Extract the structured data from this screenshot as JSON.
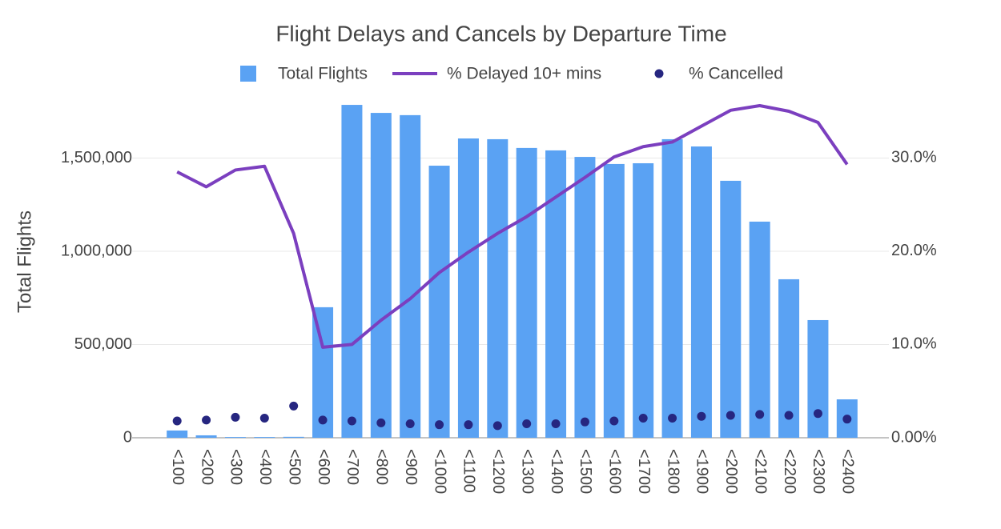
{
  "chart_data": {
    "type": "bar",
    "title": "Flight Delays and Cancels by Departure Time",
    "ylabel": "Total Flights",
    "categories": [
      "<100",
      "<200",
      "<300",
      "<400",
      "<500",
      "<600",
      "<700",
      "<800",
      "<900",
      "<1000",
      "<1100",
      "<1200",
      "<1300",
      "<1400",
      "<1500",
      "<1600",
      "<1700",
      "<1800",
      "<1900",
      "<2000",
      "<2100",
      "<2200",
      "<2300",
      "<2400"
    ],
    "series": [
      {
        "name": "Total Flights",
        "type": "bar",
        "color": "#5aa2f3",
        "values": [
          39000,
          13000,
          4000,
          4000,
          5000,
          700000,
          1785000,
          1742000,
          1730000,
          1459000,
          1605000,
          1601000,
          1554000,
          1541000,
          1506000,
          1468000,
          1472000,
          1601000,
          1562000,
          1378000,
          1159000,
          850000,
          631000,
          206000
        ]
      },
      {
        "name": "% Delayed 10+ mins",
        "type": "line",
        "axis": "y2",
        "color": "#7b3fbf",
        "values": [
          28.5,
          26.9,
          28.7,
          29.1,
          21.9,
          9.7,
          10.0,
          12.6,
          14.9,
          17.7,
          19.9,
          21.9,
          23.7,
          25.8,
          27.9,
          30.1,
          31.2,
          31.7,
          33.4,
          35.1,
          35.6,
          35.0,
          33.8,
          29.3
        ]
      },
      {
        "name": "% Cancelled",
        "type": "scatter",
        "axis": "y2",
        "color": "#262680",
        "values": [
          1.8,
          1.9,
          2.2,
          2.1,
          3.4,
          1.9,
          1.8,
          1.6,
          1.5,
          1.4,
          1.4,
          1.3,
          1.5,
          1.5,
          1.7,
          1.8,
          2.1,
          2.1,
          2.3,
          2.4,
          2.5,
          2.4,
          2.6,
          2.0
        ]
      }
    ],
    "ylim": [
      0,
      1811000
    ],
    "yticks": [
      0,
      {
        "value": 500000,
        "label": "500,000"
      },
      {
        "value": 1000000,
        "label": "1,000,000"
      },
      {
        "value": 1500000,
        "label": "1,500,000"
      }
    ],
    "y2lim": [
      0,
      36.2
    ],
    "y2ticks": [
      {
        "value": 0,
        "label": "0.00%"
      },
      {
        "value": 10,
        "label": "10.0%"
      },
      {
        "value": 20,
        "label": "20.0%"
      },
      {
        "value": 30,
        "label": "30.0%"
      }
    ],
    "grid": true,
    "legend": "top"
  }
}
